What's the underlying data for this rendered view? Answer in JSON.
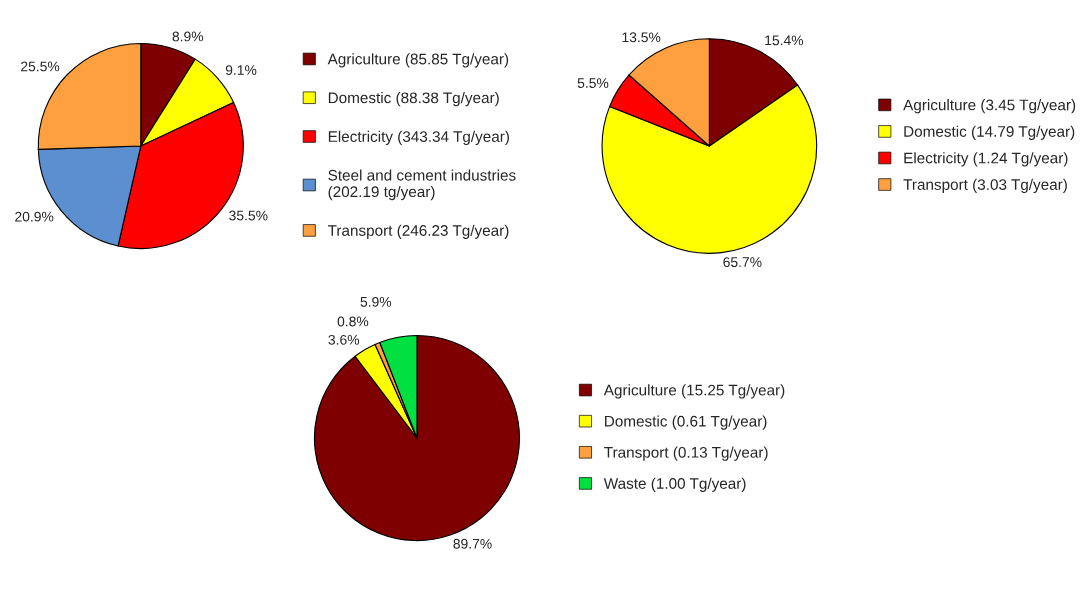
{
  "chart_data": [
    {
      "type": "pie",
      "categories": [
        "Agriculture (85.85 Tg/year)",
        "Domestic (88.38 Tg/year)",
        "Electricity (343.34 Tg/year)",
        "Steel and cement industries\n(202.19 tg/year)",
        "Transport (246.23 Tg/year)"
      ],
      "values": [
        8.9,
        9.1,
        35.5,
        20.9,
        25.5
      ],
      "value_labels": [
        "8.9%",
        "9.1%",
        "35.5%",
        "20.9%",
        "25.5%"
      ],
      "colors": [
        "#7f0000",
        "#ffff00",
        "#ff0000",
        "#5b8fd0",
        "#ffa040"
      ],
      "legend": "right"
    },
    {
      "type": "pie",
      "categories": [
        "Agriculture (3.45 Tg/year)",
        "Domestic (14.79 Tg/year)",
        "Electricity (1.24 Tg/year)",
        "Transport (3.03 Tg/year)"
      ],
      "values": [
        15.4,
        65.7,
        5.5,
        13.5
      ],
      "value_labels": [
        "15.4%",
        "65.7%",
        "5.5%",
        "13.5%"
      ],
      "colors": [
        "#7f0000",
        "#ffff00",
        "#ff0000",
        "#ffa040"
      ],
      "legend": "right"
    },
    {
      "type": "pie",
      "categories": [
        "Agriculture (15.25 Tg/year)",
        "Domestic (0.61 Tg/year)",
        "Transport (0.13 Tg/year)",
        "Waste (1.00 Tg/year)"
      ],
      "values": [
        89.7,
        3.6,
        0.8,
        5.9
      ],
      "value_labels": [
        "89.7%",
        "3.6%",
        "0.8%",
        "5.9%"
      ],
      "colors": [
        "#7f0000",
        "#ffff00",
        "#ffa040",
        "#00e040"
      ],
      "legend": "right"
    }
  ]
}
